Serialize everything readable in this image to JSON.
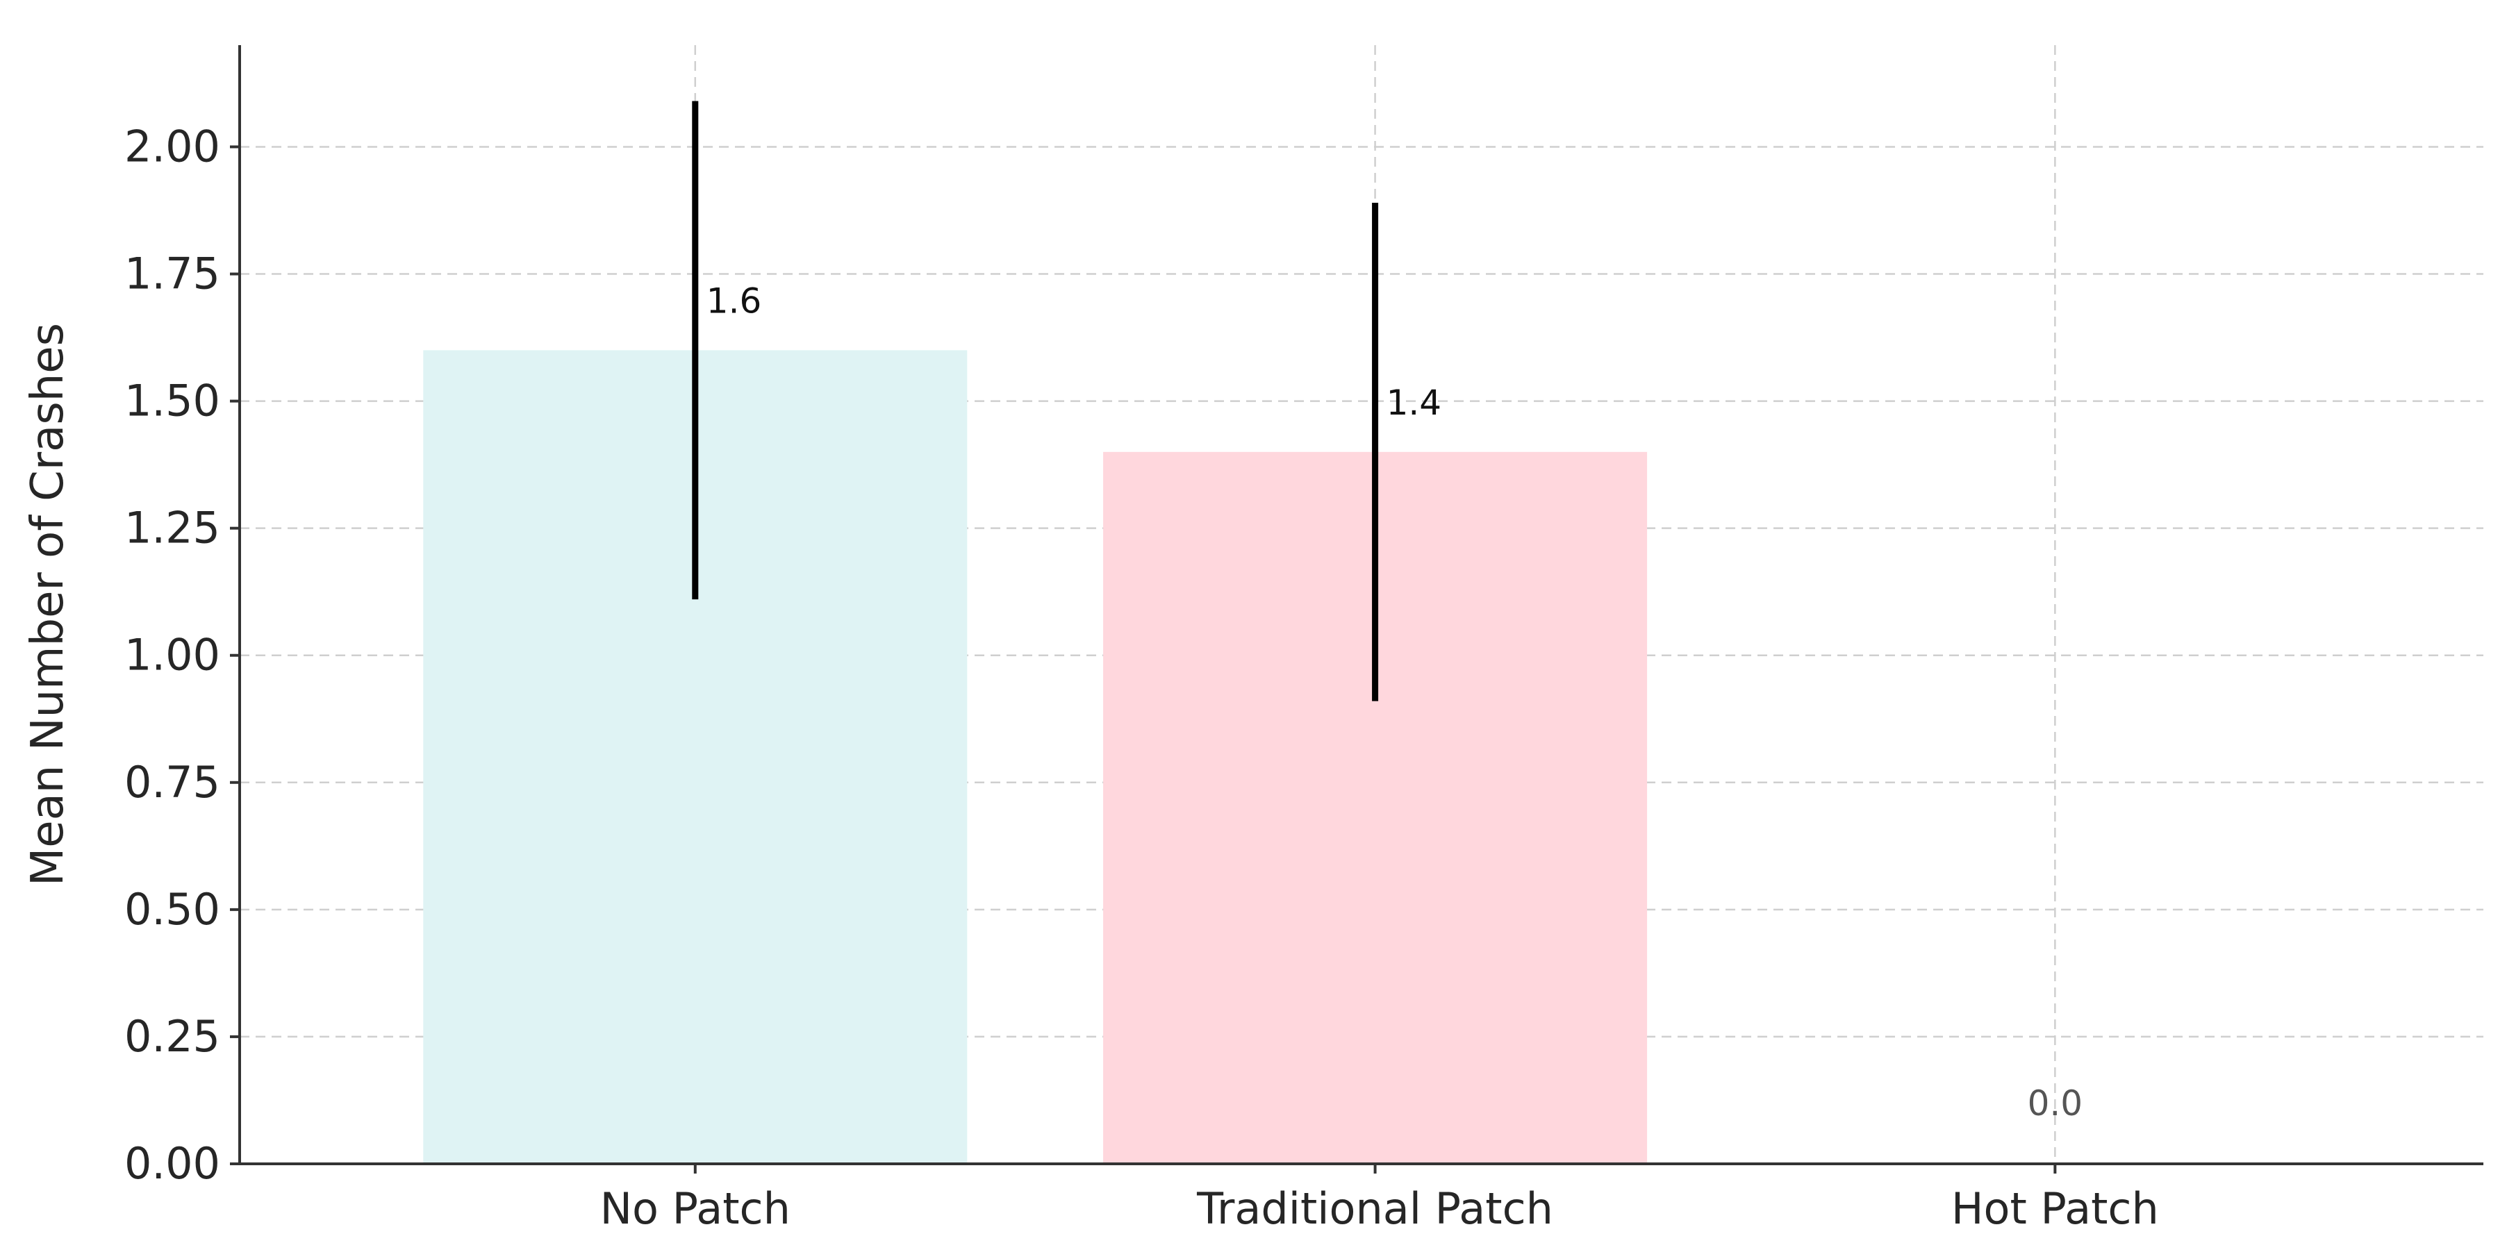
{
  "chart_data": {
    "type": "bar",
    "title": "",
    "xlabel": "",
    "ylabel": "Mean Number of Crashes",
    "categories": [
      "No Patch",
      "Traditional Patch",
      "Hot Patch"
    ],
    "values": [
      1.6,
      1.4,
      0.0
    ],
    "value_labels": [
      "1.6",
      "1.4",
      "0.0"
    ],
    "error_bars": [
      {
        "low": 1.11,
        "high": 2.09
      },
      {
        "low": 0.91,
        "high": 1.89
      },
      {
        "low": 0.0,
        "high": 0.0
      }
    ],
    "bar_colors": [
      "#dff3f4",
      "#ffd7dd",
      "#ffffff"
    ],
    "error_color": "#000000",
    "ylim": [
      0,
      2.2
    ],
    "yticks": [
      0.0,
      0.25,
      0.5,
      0.75,
      1.0,
      1.25,
      1.5,
      1.75,
      2.0
    ],
    "ytick_labels": [
      "0.00",
      "0.25",
      "0.50",
      "0.75",
      "1.00",
      "1.25",
      "1.50",
      "1.75",
      "2.00"
    ],
    "grid": true,
    "legend": "none"
  }
}
